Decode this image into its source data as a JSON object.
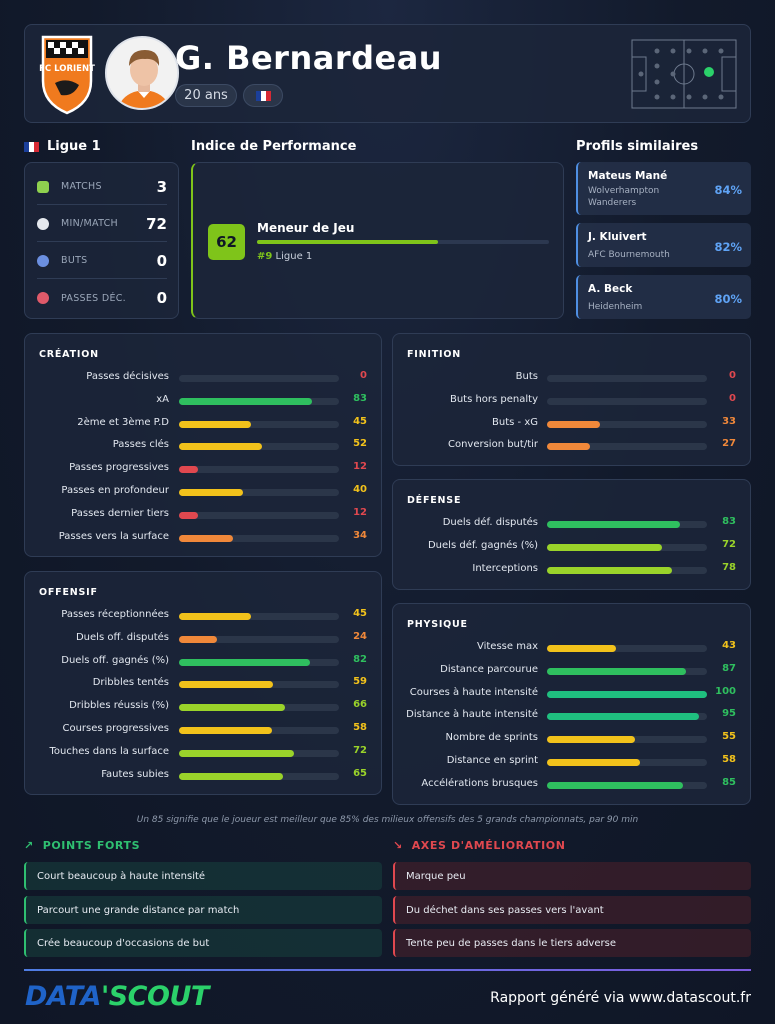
{
  "header": {
    "club_logo_text": "FC LORIENT",
    "player_name": "G. Bernardeau",
    "age": "20 ans"
  },
  "league": {
    "title": "Ligue 1",
    "stats": [
      {
        "label": "MATCHS",
        "value": "3",
        "icon": "pitch-icon",
        "color": "#8fd14f"
      },
      {
        "label": "MIN/MATCH",
        "value": "72",
        "icon": "stopwatch-icon",
        "color": "#e5e8ee"
      },
      {
        "label": "BUTS",
        "value": "0",
        "icon": "ball-icon",
        "color": "#6b8fe0"
      },
      {
        "label": "PASSES DÉC.",
        "value": "0",
        "icon": "target-icon",
        "color": "#e05a6a"
      }
    ]
  },
  "performance": {
    "title": "Indice de Performance",
    "score": "62",
    "score_pct": 62,
    "role": "Meneur de Jeu",
    "rank": "#9",
    "rank_league": "Ligue 1"
  },
  "similar": {
    "title": "Profils similaires",
    "profiles": [
      {
        "name": "Mateus Mané",
        "club": "Wolverhampton Wanderers",
        "pct": "84%"
      },
      {
        "name": "J. Kluivert",
        "club": "AFC Bournemouth",
        "pct": "82%"
      },
      {
        "name": "A. Beck",
        "club": "Heidenheim",
        "pct": "80%"
      }
    ]
  },
  "creation": {
    "title": "CRÉATION",
    "metrics": [
      {
        "label": "Passes décisives",
        "value": 0
      },
      {
        "label": "xA",
        "value": 83
      },
      {
        "label": "2ème et 3ème P.D",
        "value": 45
      },
      {
        "label": "Passes clés",
        "value": 52
      },
      {
        "label": "Passes progressives",
        "value": 12
      },
      {
        "label": "Passes en profondeur",
        "value": 40
      },
      {
        "label": "Passes dernier tiers",
        "value": 12
      },
      {
        "label": "Passes vers la surface",
        "value": 34
      }
    ]
  },
  "offensif": {
    "title": "OFFENSIF",
    "metrics": [
      {
        "label": "Passes réceptionnées",
        "value": 45
      },
      {
        "label": "Duels off. disputés",
        "value": 24
      },
      {
        "label": "Duels off. gagnés (%)",
        "value": 82
      },
      {
        "label": "Dribbles tentés",
        "value": 59
      },
      {
        "label": "Dribbles réussis (%)",
        "value": 66
      },
      {
        "label": "Courses progressives",
        "value": 58
      },
      {
        "label": "Touches dans la surface",
        "value": 72
      },
      {
        "label": "Fautes subies",
        "value": 65
      }
    ]
  },
  "finition": {
    "title": "FINITION",
    "metrics": [
      {
        "label": "Buts",
        "value": 0
      },
      {
        "label": "Buts hors penalty",
        "value": 0
      },
      {
        "label": "Buts - xG",
        "value": 33
      },
      {
        "label": "Conversion but/tir",
        "value": 27
      }
    ]
  },
  "defense": {
    "title": "DÉFENSE",
    "metrics": [
      {
        "label": "Duels déf. disputés",
        "value": 83
      },
      {
        "label": "Duels déf. gagnés (%)",
        "value": 72
      },
      {
        "label": "Interceptions",
        "value": 78
      }
    ]
  },
  "physique": {
    "title": "PHYSIQUE",
    "metrics": [
      {
        "label": "Vitesse max",
        "value": 43
      },
      {
        "label": "Distance parcourue",
        "value": 87
      },
      {
        "label": "Courses à haute intensité",
        "value": 100
      },
      {
        "label": "Distance à haute intensité",
        "value": 95
      },
      {
        "label": "Nombre de sprints",
        "value": 55
      },
      {
        "label": "Distance en sprint",
        "value": 58
      },
      {
        "label": "Accélérations brusques",
        "value": 85
      }
    ]
  },
  "caption": "Un 85 signifie que le joueur est meilleur que 85% des milieux offensifs des 5 grands championnats, par 90 min",
  "strengths": {
    "title": "POINTS FORTS",
    "items": [
      "Court beaucoup à haute intensité",
      "Parcourt une grande distance par match",
      "Crée beaucoup d'occasions de but"
    ]
  },
  "improvements": {
    "title": "AXES D'AMÉLIORATION",
    "items": [
      "Marque peu",
      "Du déchet dans ses passes vers l'avant",
      "Tente peu de passes dans le tiers adverse"
    ]
  },
  "footer": {
    "brand_part1": "DATA",
    "brand_part2": "SCOUT",
    "text": "Rapport généré via www.datascout.fr"
  },
  "colors": {
    "red": "#e0484f",
    "orange": "#f0883a",
    "yellow": "#f2c21b",
    "lime": "#9ad32a",
    "green": "#2fbf5f",
    "teal": "#1fbf7f",
    "accent_green": "#7fc41a",
    "accent_blue": "#5fa3f5"
  }
}
